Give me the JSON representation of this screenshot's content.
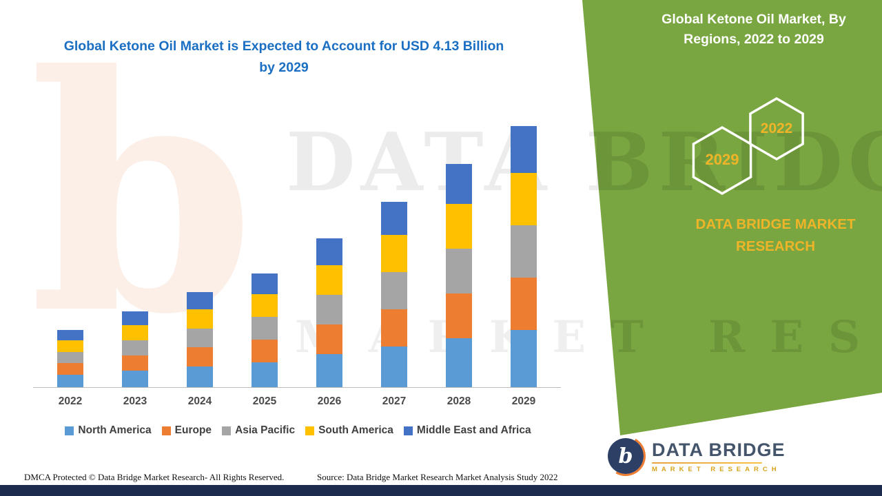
{
  "chart_data": {
    "type": "bar",
    "stacked": true,
    "title": "Global Ketone Oil Market is Expected to Account for USD 4.13 Billion by 2029",
    "unit": "USD Billion",
    "categories": [
      "2022",
      "2023",
      "2024",
      "2025",
      "2026",
      "2027",
      "2028",
      "2029"
    ],
    "series": [
      {
        "name": "North America",
        "color": "#5B9BD5",
        "values": [
          0.2,
          0.26,
          0.33,
          0.39,
          0.52,
          0.64,
          0.77,
          0.9
        ]
      },
      {
        "name": "Europe",
        "color": "#ED7D31",
        "values": [
          0.18,
          0.24,
          0.3,
          0.36,
          0.47,
          0.59,
          0.71,
          0.83
        ]
      },
      {
        "name": "Asia Pacific",
        "color": "#A5A5A5",
        "values": [
          0.18,
          0.24,
          0.3,
          0.36,
          0.47,
          0.59,
          0.71,
          0.83
        ]
      },
      {
        "name": "South America",
        "color": "#FFC000",
        "values": [
          0.18,
          0.24,
          0.3,
          0.36,
          0.47,
          0.59,
          0.71,
          0.83
        ]
      },
      {
        "name": "Middle East and Africa",
        "color": "#4472C4",
        "values": [
          0.17,
          0.22,
          0.28,
          0.33,
          0.43,
          0.52,
          0.63,
          0.74
        ]
      }
    ],
    "totals": [
      0.91,
      1.2,
      1.51,
      1.8,
      2.36,
      2.93,
      3.53,
      4.13
    ],
    "xlabel": "",
    "ylabel": "",
    "ylim": [
      0,
      4.2
    ],
    "grid": false,
    "legend_position": "bottom"
  },
  "side_panel": {
    "title": "Global Ketone Oil Market, By Regions, 2022 to 2029",
    "hexagons": [
      {
        "label": "2029"
      },
      {
        "label": "2022"
      }
    ],
    "brand": "DATA BRIDGE MARKET RESEARCH",
    "background_color": "#7AA642",
    "accent_color": "#F0B428"
  },
  "watermark": {
    "line1": "DATA BRIDGE",
    "line2": "MARKET RESEARCH",
    "letter": "b"
  },
  "footer": {
    "dmca": "DMCA Protected © Data Bridge Market Research- All Rights Reserved.",
    "source": "Source: Data Bridge Market Research Market Analysis Study 2022",
    "logo_letter": "b",
    "logo_title": "DATA BRIDGE",
    "logo_subtitle": "MARKET RESEARCH"
  }
}
